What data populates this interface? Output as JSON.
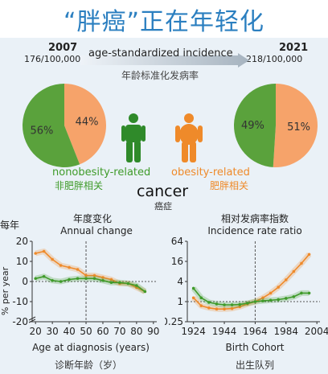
{
  "header": {
    "title": "“胖癌”正在年轻化"
  },
  "top": {
    "left_year": "2007",
    "left_rate": "176/100,000",
    "right_year": "2021",
    "right_rate": "218/100,000",
    "arrow_label_en": "age-standardized incidence",
    "arrow_label_zh": "年龄标准化发病率"
  },
  "legend": {
    "nonobesity_en": "nonobesity-related",
    "nonobesity_zh": "非肥胖相关",
    "obesity_en": "obesity-related",
    "obesity_zh": "肥胖相关",
    "cancer_en": "cancer",
    "cancer_zh": "癌症"
  },
  "colors": {
    "orange": "#ef8a2a",
    "orange_light": "#f6a36a",
    "green": "#3f9b2a",
    "green_dark": "#2f7d22",
    "title_blue": "#2b7fc0"
  },
  "icons": [
    "green-person-icon",
    "orange-person-icon",
    "axis-break-icon"
  ],
  "chart_data": [
    {
      "type": "pie",
      "label": "2007",
      "slices": [
        {
          "name": "nonobesity-related",
          "value": 56,
          "label": "56%",
          "color": "#5aa23c"
        },
        {
          "name": "obesity-related",
          "value": 44,
          "label": "44%",
          "color": "#f6a36a"
        }
      ]
    },
    {
      "type": "pie",
      "label": "2021",
      "slices": [
        {
          "name": "nonobesity-related",
          "value": 49,
          "label": "49%",
          "color": "#5aa23c"
        },
        {
          "name": "obesity-related",
          "value": 51,
          "label": "51%",
          "color": "#f6a36a"
        }
      ]
    },
    {
      "type": "line",
      "title_zh": "年度变化",
      "title_en": "Annual change",
      "ylabel_zh": "每年",
      "ylabel": "% per year",
      "xlabel": "Age at diagnosis (years)",
      "xlabel_zh": "诊断年龄（岁）",
      "xlim": [
        18,
        92
      ],
      "ylim": [
        -20,
        20
      ],
      "xticks": [
        20,
        30,
        40,
        50,
        60,
        70,
        80,
        90
      ],
      "yticks": [
        -20,
        -10,
        0,
        10,
        20
      ],
      "reference_x": 50,
      "reference_y": 0,
      "series": [
        {
          "color": "#ef8a2a",
          "x": [
            20,
            25,
            30,
            35,
            40,
            45,
            50,
            55,
            60,
            65,
            70,
            75,
            80,
            85
          ],
          "y": [
            14,
            15,
            11,
            8,
            7,
            6,
            3,
            3,
            2,
            1,
            -1,
            -1,
            -3,
            -5
          ]
        },
        {
          "color": "#3f9b2a",
          "x": [
            20,
            25,
            30,
            35,
            40,
            45,
            50,
            55,
            60,
            65,
            70,
            75,
            80,
            85
          ],
          "y": [
            1.5,
            2.5,
            0.5,
            0,
            1,
            1.5,
            1.5,
            1.5,
            0.5,
            -0.5,
            -0.5,
            -1,
            -2,
            -5
          ]
        }
      ]
    },
    {
      "type": "line",
      "title_zh": "相对发病率指数",
      "title_en": "Incidence rate ratio",
      "xlabel": "Birth Cohort",
      "xlabel_zh": "出生队列",
      "scale": "log2",
      "xlim": [
        1920,
        2006
      ],
      "ylim": [
        0.25,
        64
      ],
      "xticks": [
        1924,
        1944,
        1964,
        1984,
        2004
      ],
      "yticks": [
        0.25,
        1,
        4,
        16,
        64
      ],
      "ytick_labels": [
        "0.25",
        "1",
        "4",
        "16",
        "64"
      ],
      "reference_x": 1964,
      "reference_y": 1,
      "series": [
        {
          "color": "#ef8a2a",
          "x": [
            1924,
            1929,
            1934,
            1939,
            1944,
            1949,
            1954,
            1959,
            1964,
            1969,
            1974,
            1979,
            1984,
            1989,
            1994,
            1999
          ],
          "y": [
            1.3,
            0.75,
            0.65,
            0.6,
            0.6,
            0.62,
            0.7,
            0.85,
            1.0,
            1.3,
            1.8,
            2.7,
            4.5,
            8,
            14,
            26
          ]
        },
        {
          "color": "#3f9b2a",
          "x": [
            1924,
            1929,
            1934,
            1939,
            1944,
            1949,
            1954,
            1959,
            1964,
            1969,
            1974,
            1979,
            1984,
            1989,
            1994,
            1999
          ],
          "y": [
            2.5,
            1.3,
            0.95,
            0.85,
            0.8,
            0.8,
            0.82,
            0.9,
            1.0,
            1.05,
            1.1,
            1.15,
            1.25,
            1.4,
            1.8,
            1.8
          ]
        }
      ]
    }
  ]
}
